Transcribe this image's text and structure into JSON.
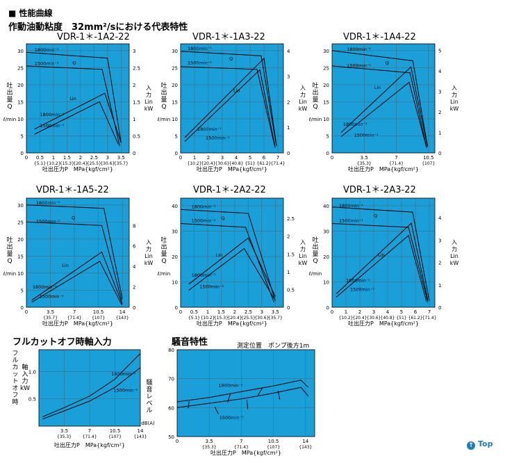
{
  "header": {
    "section": "■ 性能曲線",
    "subtitle": "作動油動粘度　32mm²/sにおける代表特性"
  },
  "top_link": "Top",
  "chart_data": [
    {
      "type": "line",
      "title": "VDR-1＊-1A2-22",
      "ylabel_left": [
        "吐",
        "出",
        "量",
        "Q"
      ],
      "yunit_left": "ℓ/min",
      "ylabel_right": [
        "入",
        "力",
        "Lin",
        "kW"
      ],
      "xlabel": "吐出圧力P　MPa{kgf/cm²}",
      "xlim": [
        0,
        3.8
      ],
      "ylim": [
        0,
        32
      ],
      "y2lim": [
        0,
        3.2
      ],
      "yticks": [
        0,
        5,
        10,
        15,
        20,
        25,
        30
      ],
      "y2ticks": [
        0,
        0.5,
        1.0,
        1.5,
        2.0,
        2.5,
        3.0
      ],
      "xticks": [
        0,
        0.5,
        1,
        1.5,
        2,
        2.5,
        3,
        3.5
      ],
      "xtick_labels": [
        "0",
        "0.5",
        "1",
        "1.5",
        "2",
        "2.5",
        "3",
        "3.5"
      ],
      "xtick_kgf": [
        "{5.1}",
        "{10.2}",
        "{15.3}",
        "{20.4}",
        "{25.5}",
        "{30.6}",
        "{35.7}"
      ],
      "xtick_kgf_at": [
        0.5,
        1,
        1.5,
        2,
        2.5,
        3,
        3.5
      ],
      "series": [
        {
          "kind": "Q",
          "x": [
            0,
            3.0,
            3.5
          ],
          "y": [
            29.5,
            27.8,
            3
          ]
        },
        {
          "kind": "Q",
          "x": [
            0,
            2.8,
            3.45
          ],
          "y": [
            25.5,
            24.5,
            2
          ]
        },
        {
          "kind": "L",
          "x": [
            0.3,
            2.9,
            3.5
          ],
          "y": [
            0.7,
            1.75,
            0.3
          ]
        },
        {
          "kind": "L",
          "x": [
            0.3,
            2.7,
            3.4
          ],
          "y": [
            0.55,
            1.5,
            0.25
          ]
        }
      ],
      "annotations": [
        {
          "text": "1800min⁻¹",
          "x": 0.3,
          "y": 29.8
        },
        {
          "text": "1500min⁻¹",
          "x": 0.3,
          "y": 25.8
        },
        {
          "text": "Q",
          "x": 1.7,
          "y": 26.0
        },
        {
          "text": "Lin",
          "x": 1.6,
          "y": 15.5
        },
        {
          "text": "1800min⁻¹",
          "x": 0.5,
          "y": 10.8
        },
        {
          "text": "1500min⁻¹",
          "x": 0.5,
          "y": 7.5
        }
      ]
    },
    {
      "type": "line",
      "title": "VDR-1＊-1A3-22",
      "ylabel_left": [
        "吐",
        "出",
        "量",
        "Q"
      ],
      "yunit_left": "ℓ/min",
      "ylabel_right": [
        "入",
        "力",
        "Lin",
        "kW"
      ],
      "xlabel": "吐出圧力P　MPa{kgf/cm²}",
      "xlim": [
        0,
        7.4
      ],
      "ylim": [
        0,
        32
      ],
      "y2lim": [
        0,
        4.27
      ],
      "yticks": [
        0,
        5,
        10,
        15,
        20,
        25,
        30
      ],
      "y2ticks": [
        0,
        1,
        2,
        3,
        4
      ],
      "xticks": [
        0,
        1,
        2,
        3,
        4,
        5,
        6,
        7
      ],
      "xtick_labels": [
        "0",
        "1",
        "2",
        "3",
        "4",
        "5",
        "6",
        "7"
      ],
      "xtick_kgf": [
        "{10.2}",
        "{20.4}",
        "{30.6}",
        "{40.8}",
        "{51}",
        "{61.2}",
        "{71.4}"
      ],
      "xtick_kgf_at": [
        1,
        2,
        3,
        4,
        5,
        6,
        7
      ],
      "series": [
        {
          "kind": "Q",
          "x": [
            0,
            5.8,
            6.9
          ],
          "y": [
            29.8,
            28.5,
            2
          ]
        },
        {
          "kind": "Q",
          "x": [
            0,
            5.5,
            6.8
          ],
          "y": [
            25.3,
            24.5,
            1.5
          ]
        },
        {
          "kind": "L",
          "x": [
            0.3,
            6.0,
            6.9
          ],
          "y": [
            0.6,
            3.7,
            0.3
          ]
        },
        {
          "kind": "L",
          "x": [
            0.3,
            5.7,
            6.8
          ],
          "y": [
            0.45,
            3.25,
            0.25
          ]
        }
      ],
      "annotations": [
        {
          "text": "1800min⁻¹",
          "x": 0.5,
          "y": 30.2
        },
        {
          "text": "1500min⁻¹",
          "x": 0.5,
          "y": 26.0
        },
        {
          "text": "Q",
          "x": 3.5,
          "y": 27.2
        },
        {
          "text": "Lin",
          "x": 3.8,
          "y": 17.8
        },
        {
          "text": "1800min⁻¹",
          "x": 1.2,
          "y": 6.5
        },
        {
          "text": "1500min⁻¹",
          "x": 1.8,
          "y": 4.0
        }
      ]
    },
    {
      "type": "line",
      "title": "VDR-1＊-1A4-22",
      "ylabel_left": [
        "吐",
        "出",
        "量",
        "Q"
      ],
      "yunit_left": "ℓ/min",
      "ylabel_right": [
        "入",
        "力",
        "Lin",
        "kW"
      ],
      "xlabel": "吐出圧力P　MPa{kgf/cm²}",
      "xlim": [
        0,
        11.2
      ],
      "ylim": [
        0,
        32
      ],
      "y2lim": [
        0,
        5.33
      ],
      "yticks": [
        0,
        5,
        10,
        15,
        20,
        25,
        30
      ],
      "y2ticks": [
        0,
        1,
        2,
        3,
        4,
        5
      ],
      "xticks": [
        0,
        3.5,
        7,
        10.5
      ],
      "xtick_labels": [
        "0",
        "3.5",
        "7",
        "10.5"
      ],
      "xtick_kgf": [
        "{35.3}",
        "{71.4}",
        "{107}"
      ],
      "xtick_kgf_at": [
        3.5,
        7,
        10.5
      ],
      "series": [
        {
          "kind": "Q",
          "x": [
            0,
            8.8,
            10.4
          ],
          "y": [
            30,
            27,
            2
          ]
        },
        {
          "kind": "Q",
          "x": [
            0,
            8.5,
            10.3
          ],
          "y": [
            25.5,
            23.5,
            1.5
          ]
        },
        {
          "kind": "L",
          "x": [
            1.0,
            8.6,
            10.4
          ],
          "y": [
            1.0,
            4.2,
            0.3
          ]
        },
        {
          "kind": "L",
          "x": [
            1.0,
            8.4,
            10.3
          ],
          "y": [
            0.8,
            3.45,
            0.25
          ]
        }
      ],
      "annotations": [
        {
          "text": "1800min⁻¹",
          "x": 1.6,
          "y": 30.0
        },
        {
          "text": "1500min⁻¹",
          "x": 1.6,
          "y": 25.2
        },
        {
          "text": "Q",
          "x": 5.8,
          "y": 26.0
        },
        {
          "text": "Lin",
          "x": 4.6,
          "y": 18.8
        },
        {
          "text": "1800min⁻¹",
          "x": 1.2,
          "y": 8.0
        },
        {
          "text": "1500min⁻¹",
          "x": 2.4,
          "y": 4.8
        }
      ]
    },
    {
      "type": "line",
      "title": "VDR-1＊-1A5-22",
      "ylabel_left": [
        "吐",
        "出",
        "量",
        "Q"
      ],
      "yunit_left": "ℓ/min",
      "ylabel_right": [
        "入",
        "力",
        "Lin",
        "kW"
      ],
      "xlabel": "吐出圧力P　MPa{kgf/cm²}",
      "xlim": [
        0,
        15
      ],
      "ylim": [
        0,
        32
      ],
      "y2lim": [
        0,
        10.67
      ],
      "yticks": [
        0,
        5,
        10,
        15,
        20,
        25,
        30
      ],
      "y2ticks": [
        0,
        2,
        4,
        6,
        8
      ],
      "xticks": [
        0,
        3.5,
        7,
        10.5,
        14
      ],
      "xtick_labels": [
        "0",
        "3.5",
        "7",
        "10.5",
        "14"
      ],
      "xtick_kgf": [
        "{35.7}",
        "{71.4}",
        "{107}",
        "{143}"
      ],
      "xtick_kgf_at": [
        3.5,
        7,
        10.5,
        14
      ],
      "series": [
        {
          "kind": "Q",
          "x": [
            0,
            11.3,
            14
          ],
          "y": [
            30,
            29,
            2.5
          ]
        },
        {
          "kind": "Q",
          "x": [
            0,
            11.0,
            13.9
          ],
          "y": [
            25,
            24,
            2
          ]
        },
        {
          "kind": "L",
          "x": [
            0.8,
            11.0,
            14.0
          ],
          "y": [
            0.7,
            5.4,
            0.3
          ]
        },
        {
          "kind": "L",
          "x": [
            0.8,
            10.7,
            13.9
          ],
          "y": [
            0.5,
            4.5,
            0.25
          ]
        }
      ],
      "annotations": [
        {
          "text": "1800min⁻¹",
          "x": 1.4,
          "y": 30.2
        },
        {
          "text": "1500min⁻¹",
          "x": 1.4,
          "y": 24.8
        },
        {
          "text": "Q",
          "x": 6.6,
          "y": 25.8
        },
        {
          "text": "Lin",
          "x": 5.2,
          "y": 11.8
        },
        {
          "text": "1800min⁻¹",
          "x": 0.9,
          "y": 5.5
        },
        {
          "text": "1500min⁻¹",
          "x": 1.9,
          "y": 2.8
        }
      ]
    },
    {
      "type": "line",
      "title": "VDR-1＊-2A2-22",
      "ylabel_left": [
        "吐",
        "出",
        "量",
        "Q"
      ],
      "yunit_left": "ℓ/min",
      "ylabel_right": [
        "入",
        "力",
        "Lin",
        "kW"
      ],
      "xlabel": "吐出圧力P　MPa{kgf/cm²}",
      "xlim": [
        0,
        3.8
      ],
      "ylim": [
        0,
        43
      ],
      "y2lim": [
        0,
        3.07
      ],
      "yticks": [
        0,
        10,
        20,
        30,
        40
      ],
      "y2ticks": [
        0,
        0.5,
        1.0,
        1.5,
        2.0,
        2.5
      ],
      "xticks": [
        0,
        0.5,
        1,
        1.5,
        2,
        2.5,
        3,
        3.5
      ],
      "xtick_labels": [
        "0",
        "0.5",
        "1",
        "1.5",
        "2",
        "2.5",
        "3",
        "3.5"
      ],
      "xtick_kgf": [
        "{5.1}",
        "{10.2}",
        "{15.3}",
        "{20.4}",
        "{25.5}",
        "{30.6}",
        "{35.7}"
      ],
      "xtick_kgf_at": [
        0.5,
        1,
        1.5,
        2,
        2.5,
        3,
        3.5
      ],
      "series": [
        {
          "kind": "Q",
          "x": [
            0,
            2.5,
            3.5
          ],
          "y": [
            38.5,
            37.0,
            2.5
          ]
        },
        {
          "kind": "Q",
          "x": [
            0,
            2.4,
            3.45
          ],
          "y": [
            33.0,
            31.5,
            2
          ]
        },
        {
          "kind": "L",
          "x": [
            0.3,
            2.5,
            3.5
          ],
          "y": [
            0.65,
            1.95,
            0.3
          ]
        },
        {
          "kind": "L",
          "x": [
            0.3,
            2.35,
            3.45
          ],
          "y": [
            0.48,
            1.65,
            0.25
          ]
        }
      ],
      "annotations": [
        {
          "text": "1800min⁻¹",
          "x": 0.4,
          "y": 39.0
        },
        {
          "text": "1500min⁻¹",
          "x": 0.4,
          "y": 33.5
        },
        {
          "text": "Q",
          "x": 1.5,
          "y": 34.5
        },
        {
          "text": "Lin",
          "x": 1.3,
          "y": 20.0
        },
        {
          "text": "1800min⁻¹",
          "x": 0.4,
          "y": 12.0
        },
        {
          "text": "1500min⁻¹",
          "x": 0.7,
          "y": 7.6
        }
      ]
    },
    {
      "type": "line",
      "title": "VDR-1＊-2A3-22",
      "ylabel_left": [
        "吐",
        "出",
        "量",
        "Q"
      ],
      "yunit_left": "ℓ/min",
      "ylabel_right": [
        "入",
        "力",
        "Lin",
        "kW"
      ],
      "xlabel": "吐出圧力P　MPa{kgf/cm²}",
      "xlim": [
        0,
        7.4
      ],
      "ylim": [
        0,
        43
      ],
      "y2lim": [
        0,
        4.87
      ],
      "yticks": [
        0,
        10,
        20,
        30,
        40
      ],
      "y2ticks": [
        0,
        1,
        2,
        3,
        4
      ],
      "xticks": [
        0,
        1,
        2,
        3,
        4,
        5,
        6,
        7
      ],
      "xtick_labels": [
        "0",
        "1",
        "2",
        "3",
        "4",
        "5",
        "6",
        "7"
      ],
      "xtick_kgf": [
        "{10.2}",
        "{20.4}",
        "{30.6}",
        "{40.8}",
        "{51}",
        "{61.2}",
        "{71.4}"
      ],
      "xtick_kgf_at": [
        1,
        2,
        3,
        4,
        5,
        6,
        7
      ],
      "series": [
        {
          "kind": "Q",
          "x": [
            0,
            5.8,
            7.0
          ],
          "y": [
            39.5,
            37.5,
            2.5
          ]
        },
        {
          "kind": "Q",
          "x": [
            0,
            5.5,
            6.9
          ],
          "y": [
            33.0,
            31.5,
            2
          ]
        },
        {
          "kind": "L",
          "x": [
            0.3,
            5.7,
            6.9
          ],
          "y": [
            0.6,
            3.75,
            0.3
          ]
        },
        {
          "kind": "L",
          "x": [
            0.3,
            5.5,
            6.8
          ],
          "y": [
            0.45,
            3.2,
            0.25
          ]
        }
      ],
      "annotations": [
        {
          "text": "1800min⁻¹",
          "x": 0.5,
          "y": 39.5
        },
        {
          "text": "1500min⁻¹",
          "x": 0.5,
          "y": 33.5
        },
        {
          "text": "Q",
          "x": 3.0,
          "y": 35.5
        },
        {
          "text": "Lin",
          "x": 3.3,
          "y": 20.0
        },
        {
          "text": "1800min⁻¹",
          "x": 1.0,
          "y": 10.0
        },
        {
          "text": "1500min⁻¹",
          "x": 1.3,
          "y": 6.5
        }
      ]
    },
    {
      "type": "line",
      "title": "フルカットオフ時軸入力",
      "ylabel_left": [
        "フ",
        "ル",
        "カ",
        "ッ",
        "ト",
        "オ",
        "フ",
        "時"
      ],
      "ylabel_left2": [
        "軸",
        "入",
        "力",
        "kW"
      ],
      "xlabel": "吐出圧力P　MPa{kgf/cm²}",
      "xlim": [
        0,
        14
      ],
      "ylim": [
        0,
        1.4
      ],
      "yticks": [
        0.5,
        1.0
      ],
      "ytick_labels": [
        "0.5",
        "1.0"
      ],
      "xticks": [
        3.5,
        7,
        10.5,
        14
      ],
      "xtick_labels": [
        "3.5",
        "7",
        "10.5",
        "14"
      ],
      "xtick_kgf": [
        "{35.3}",
        "{71.4}",
        "{107}",
        "{143}"
      ],
      "xtick_kgf_at": [
        3.5,
        7,
        10.5,
        14
      ],
      "series": [
        {
          "kind": "Q",
          "x": [
            0.5,
            3.5,
            7,
            10.5,
            14
          ],
          "y": [
            0.17,
            0.34,
            0.55,
            0.86,
            1.33
          ]
        },
        {
          "kind": "Q",
          "x": [
            0.5,
            3.5,
            7,
            10.5,
            14
          ],
          "y": [
            0.13,
            0.28,
            0.46,
            0.71,
            1.07
          ]
        }
      ],
      "annotations": [
        {
          "text": "1800min⁻¹",
          "x": 10.0,
          "y": 0.93
        },
        {
          "text": "1500min⁻¹",
          "x": 10.3,
          "y": 0.63
        }
      ]
    },
    {
      "type": "line",
      "title": "騒音特性",
      "subtitle": "測定位置　ポンプ後方1m",
      "ylabel_left": [
        "騒",
        "音",
        "レ",
        "ベ",
        "ル"
      ],
      "yunit_left": "dB(A)",
      "xlabel": "吐出圧力P　MPa{kgf/cm²}",
      "xlim": [
        0,
        15
      ],
      "ylim": [
        50,
        80
      ],
      "yticks": [
        50,
        60,
        70,
        80
      ],
      "xticks": [
        0,
        3.5,
        7,
        10.5,
        14
      ],
      "xtick_labels": [
        "0",
        "3.5",
        "7",
        "10.5",
        "14"
      ],
      "xtick_kgf": [
        "{35.3}",
        "{71.4}",
        "{107}",
        "{143}"
      ],
      "xtick_kgf_at": [
        3.5,
        7,
        10.5,
        14
      ],
      "series": [
        {
          "kind": "Q",
          "x": [
            0,
            3.5,
            7,
            10.5,
            13.5,
            14.3
          ],
          "y": [
            62,
            63.5,
            65.5,
            67.5,
            69.5,
            67
          ]
        },
        {
          "kind": "Q",
          "x": [
            0,
            3.5,
            7,
            10.5,
            13.5,
            14.3
          ],
          "y": [
            60,
            61.5,
            63,
            65,
            67,
            64
          ]
        },
        {
          "kind": "Q",
          "x": [
            1.3,
            1.2
          ],
          "y": [
            62.2,
            59.8
          ]
        },
        {
          "kind": "Q",
          "x": [
            5.8,
            5.5
          ],
          "y": [
            64.8,
            61.8
          ]
        },
        {
          "kind": "Q",
          "x": [
            4.1,
            4.5
          ],
          "y": [
            60.3,
            57.8
          ]
        },
        {
          "kind": "Q",
          "x": [
            9.3,
            8.8
          ],
          "y": [
            66.8,
            64.2
          ]
        },
        {
          "kind": "Q",
          "x": [
            7.6,
            7.7
          ],
          "y": [
            62.8,
            59.5
          ]
        },
        {
          "kind": "Q",
          "x": [
            11.0,
            11.2
          ],
          "y": [
            65.8,
            62.8
          ]
        }
      ],
      "annotations": [
        {
          "text": "1800min⁻¹",
          "x": 4.5,
          "y": 67.2
        },
        {
          "text": "1500min⁻¹",
          "x": 4.6,
          "y": 56.0
        }
      ]
    }
  ]
}
